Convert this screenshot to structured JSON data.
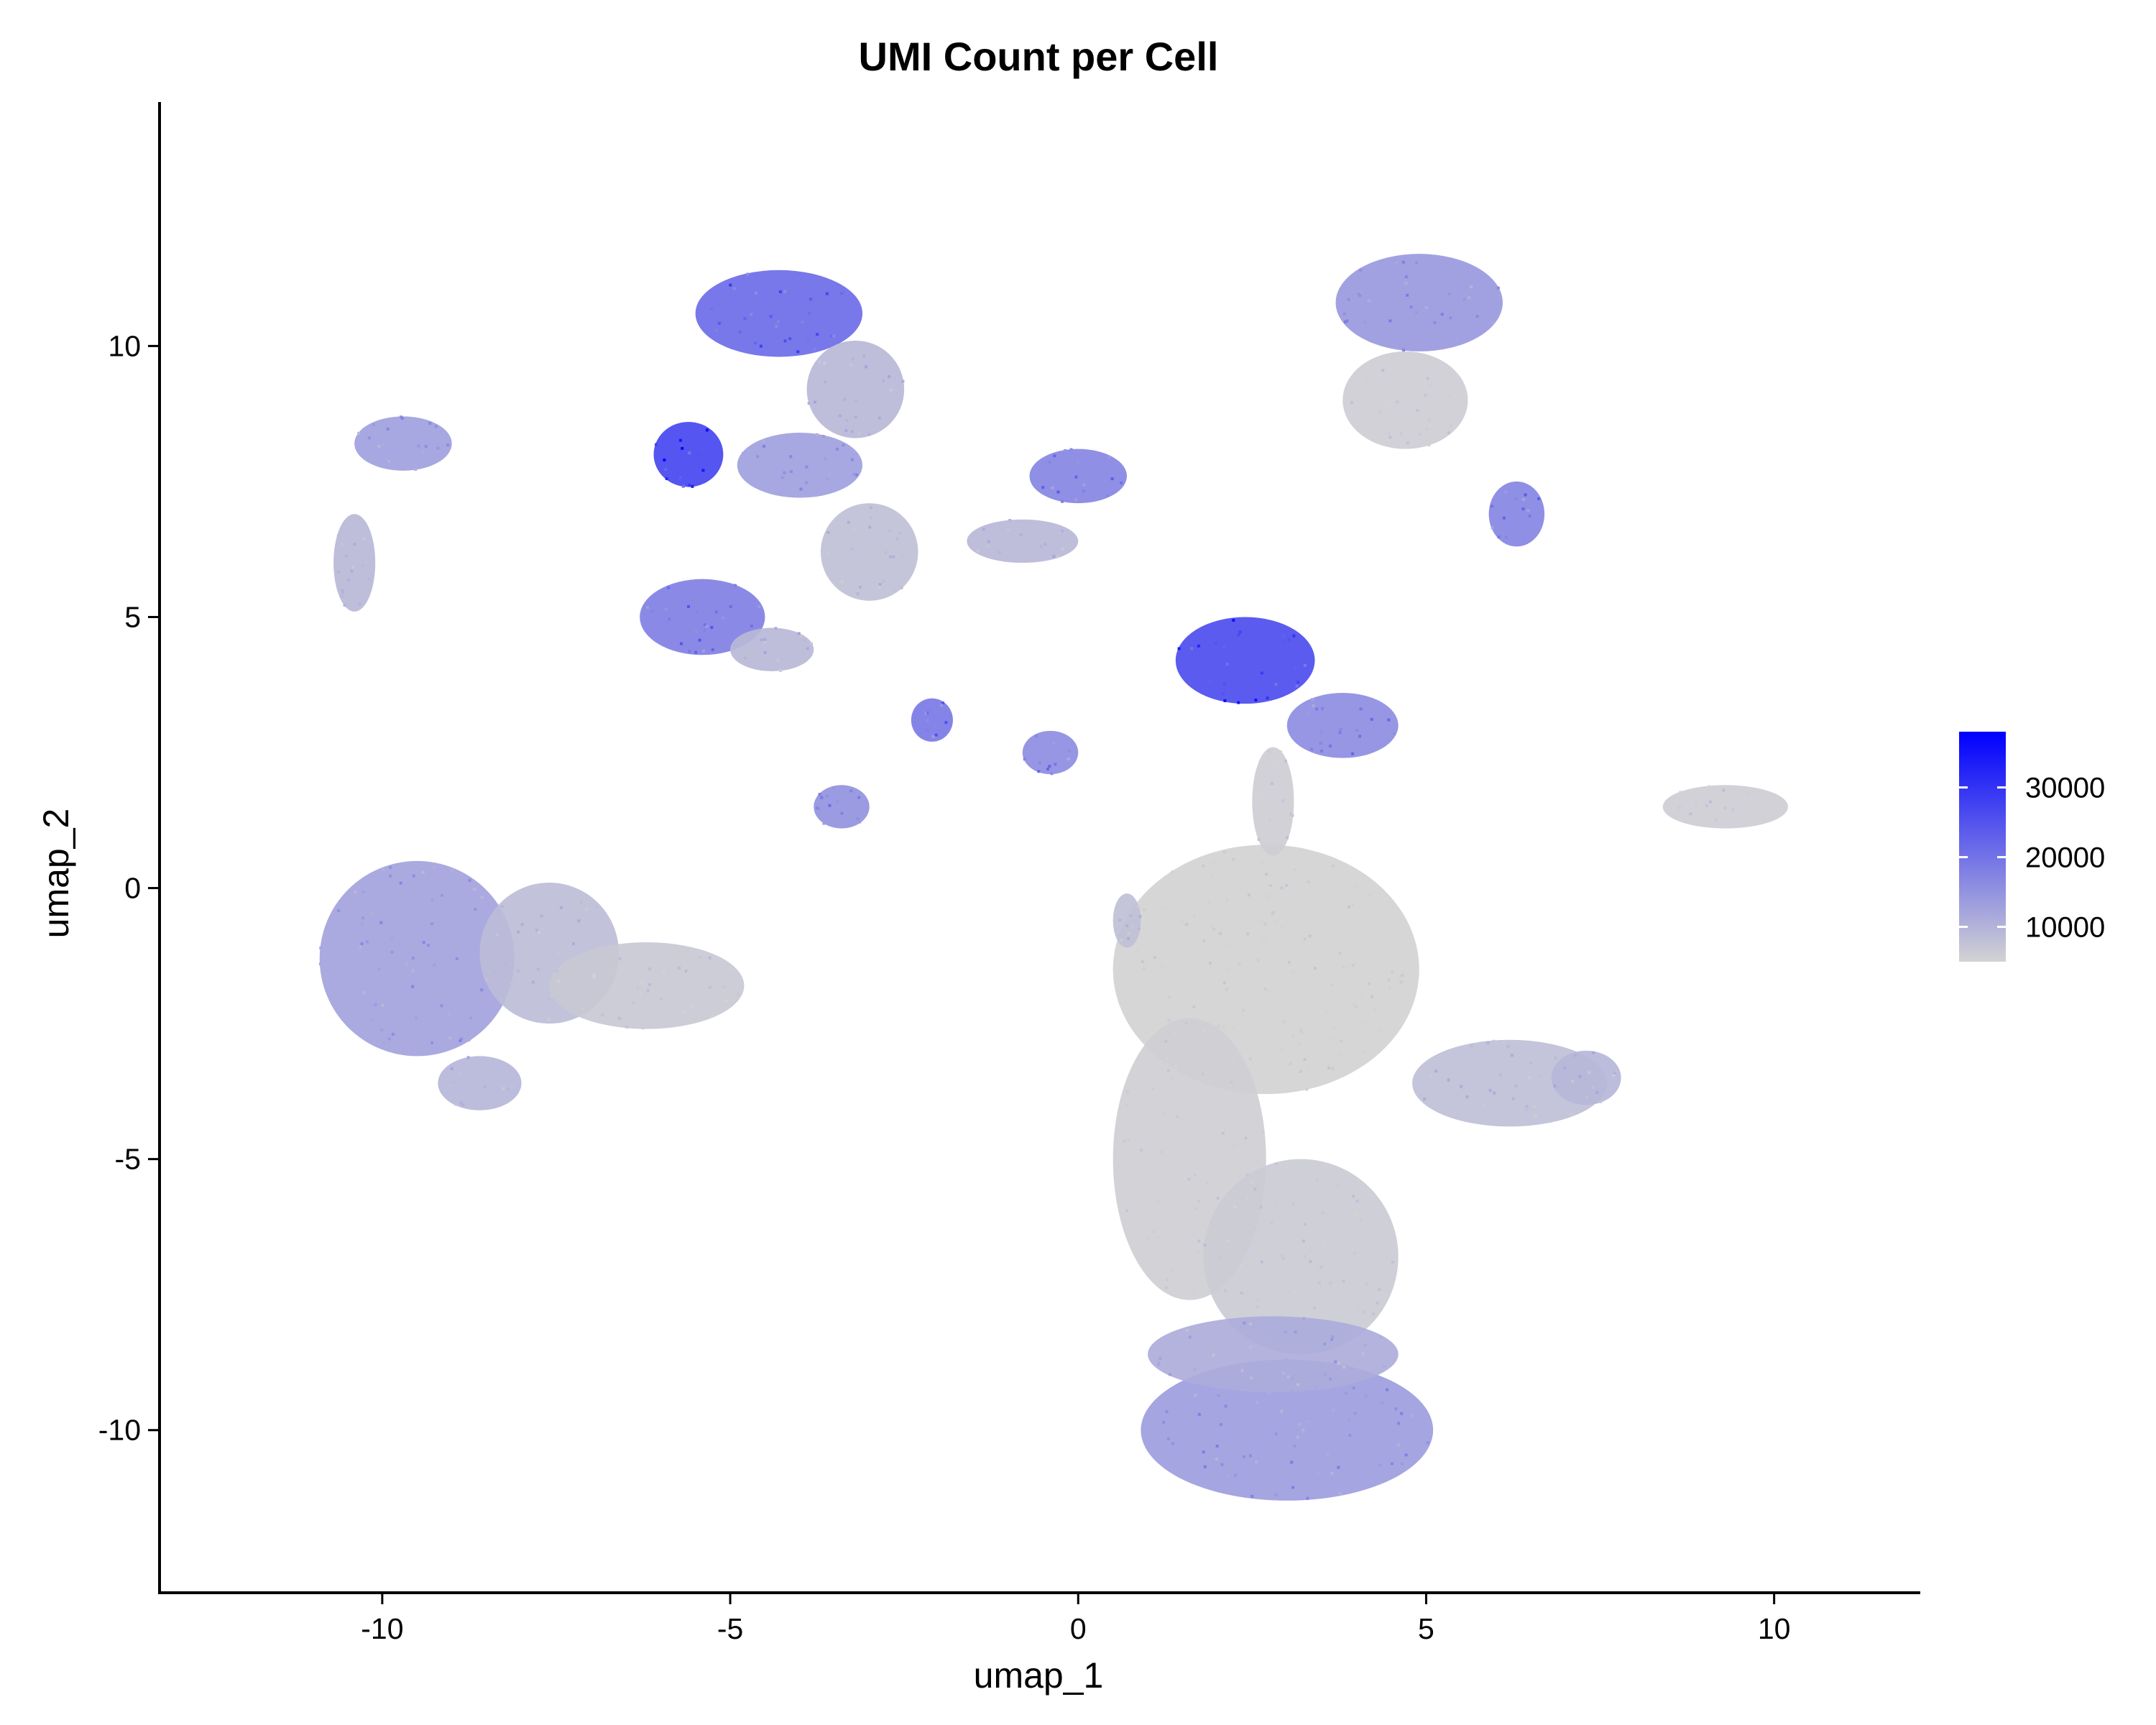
{
  "chart_data": {
    "type": "scatter",
    "title": "UMI Count per Cell",
    "xlabel": "umap_1",
    "ylabel": "umap_2",
    "xlim": [
      -13.2,
      12.1
    ],
    "ylim": [
      -13.0,
      14.5
    ],
    "x_ticks": [
      -10,
      -5,
      0,
      5,
      10
    ],
    "x_tick_labels": [
      "-10",
      "-5",
      "0",
      "5",
      "10"
    ],
    "y_ticks": [
      -10,
      -5,
      0,
      5,
      10
    ],
    "y_tick_labels": [
      "-10",
      "-5",
      "0",
      "5",
      "10"
    ],
    "grid": false,
    "legend_position": "right",
    "color_scale": {
      "low_color": "#d3d3d3",
      "high_color": "#0000ff",
      "min": 5000,
      "max": 38000,
      "breaks": [
        10000,
        20000,
        30000
      ],
      "break_labels": [
        "10000",
        "20000",
        "30000"
      ]
    },
    "clusters": [
      {
        "cx": 2.7,
        "cy": -1.5,
        "rx": 2.2,
        "ry": 2.3,
        "value": 5200
      },
      {
        "cx": 1.6,
        "cy": -5.0,
        "rx": 1.1,
        "ry": 2.6,
        "value": 5600
      },
      {
        "cx": 3.2,
        "cy": -6.8,
        "rx": 1.4,
        "ry": 1.8,
        "value": 6200
      },
      {
        "cx": 3.0,
        "cy": -10.0,
        "rx": 2.1,
        "ry": 1.3,
        "value": 13500
      },
      {
        "cx": 2.8,
        "cy": -8.6,
        "rx": 1.8,
        "ry": 0.7,
        "value": 11000
      },
      {
        "cx": 6.2,
        "cy": -3.6,
        "rx": 1.4,
        "ry": 0.8,
        "value": 8200
      },
      {
        "cx": 7.3,
        "cy": -3.5,
        "rx": 0.5,
        "ry": 0.5,
        "value": 9500
      },
      {
        "cx": -9.5,
        "cy": -1.3,
        "rx": 1.4,
        "ry": 1.8,
        "value": 12500
      },
      {
        "cx": -7.6,
        "cy": -1.2,
        "rx": 1.0,
        "ry": 1.3,
        "value": 8500
      },
      {
        "cx": -6.2,
        "cy": -1.8,
        "rx": 1.4,
        "ry": 0.8,
        "value": 6500
      },
      {
        "cx": -8.6,
        "cy": -3.6,
        "rx": 0.6,
        "ry": 0.5,
        "value": 9500
      },
      {
        "cx": 4.9,
        "cy": 10.8,
        "rx": 1.2,
        "ry": 0.9,
        "value": 14000
      },
      {
        "cx": 4.7,
        "cy": 9.0,
        "rx": 0.9,
        "ry": 0.9,
        "value": 6000
      },
      {
        "cx": 6.3,
        "cy": 6.9,
        "rx": 0.4,
        "ry": 0.6,
        "value": 17000
      },
      {
        "cx": -4.3,
        "cy": 10.6,
        "rx": 1.2,
        "ry": 0.8,
        "value": 21000
      },
      {
        "cx": -3.2,
        "cy": 9.2,
        "rx": 0.7,
        "ry": 0.9,
        "value": 9000
      },
      {
        "cx": -5.6,
        "cy": 8.0,
        "rx": 0.5,
        "ry": 0.6,
        "value": 27000
      },
      {
        "cx": -4.0,
        "cy": 7.8,
        "rx": 0.9,
        "ry": 0.6,
        "value": 13000
      },
      {
        "cx": -5.4,
        "cy": 5.0,
        "rx": 0.9,
        "ry": 0.7,
        "value": 18000
      },
      {
        "cx": -4.4,
        "cy": 4.4,
        "rx": 0.6,
        "ry": 0.4,
        "value": 9000
      },
      {
        "cx": -3.0,
        "cy": 6.2,
        "rx": 0.7,
        "ry": 0.9,
        "value": 8000
      },
      {
        "cx": 0.0,
        "cy": 7.6,
        "rx": 0.7,
        "ry": 0.5,
        "value": 17000
      },
      {
        "cx": -0.8,
        "cy": 6.4,
        "rx": 0.8,
        "ry": 0.4,
        "value": 9000
      },
      {
        "cx": 2.4,
        "cy": 4.2,
        "rx": 1.0,
        "ry": 0.8,
        "value": 26000
      },
      {
        "cx": 3.8,
        "cy": 3.0,
        "rx": 0.8,
        "ry": 0.6,
        "value": 16000
      },
      {
        "cx": 2.8,
        "cy": 1.6,
        "rx": 0.3,
        "ry": 1.0,
        "value": 6000
      },
      {
        "cx": -9.7,
        "cy": 8.2,
        "rx": 0.7,
        "ry": 0.5,
        "value": 13000
      },
      {
        "cx": -10.4,
        "cy": 6.0,
        "rx": 0.3,
        "ry": 0.9,
        "value": 9000
      },
      {
        "cx": 9.3,
        "cy": 1.5,
        "rx": 0.9,
        "ry": 0.4,
        "value": 6000
      },
      {
        "cx": -3.4,
        "cy": 1.5,
        "rx": 0.4,
        "ry": 0.4,
        "value": 15000
      },
      {
        "cx": -2.1,
        "cy": 3.1,
        "rx": 0.3,
        "ry": 0.4,
        "value": 19000
      },
      {
        "cx": -0.4,
        "cy": 2.5,
        "rx": 0.4,
        "ry": 0.4,
        "value": 16000
      },
      {
        "cx": 0.7,
        "cy": -0.6,
        "rx": 0.2,
        "ry": 0.5,
        "value": 8000
      }
    ]
  }
}
